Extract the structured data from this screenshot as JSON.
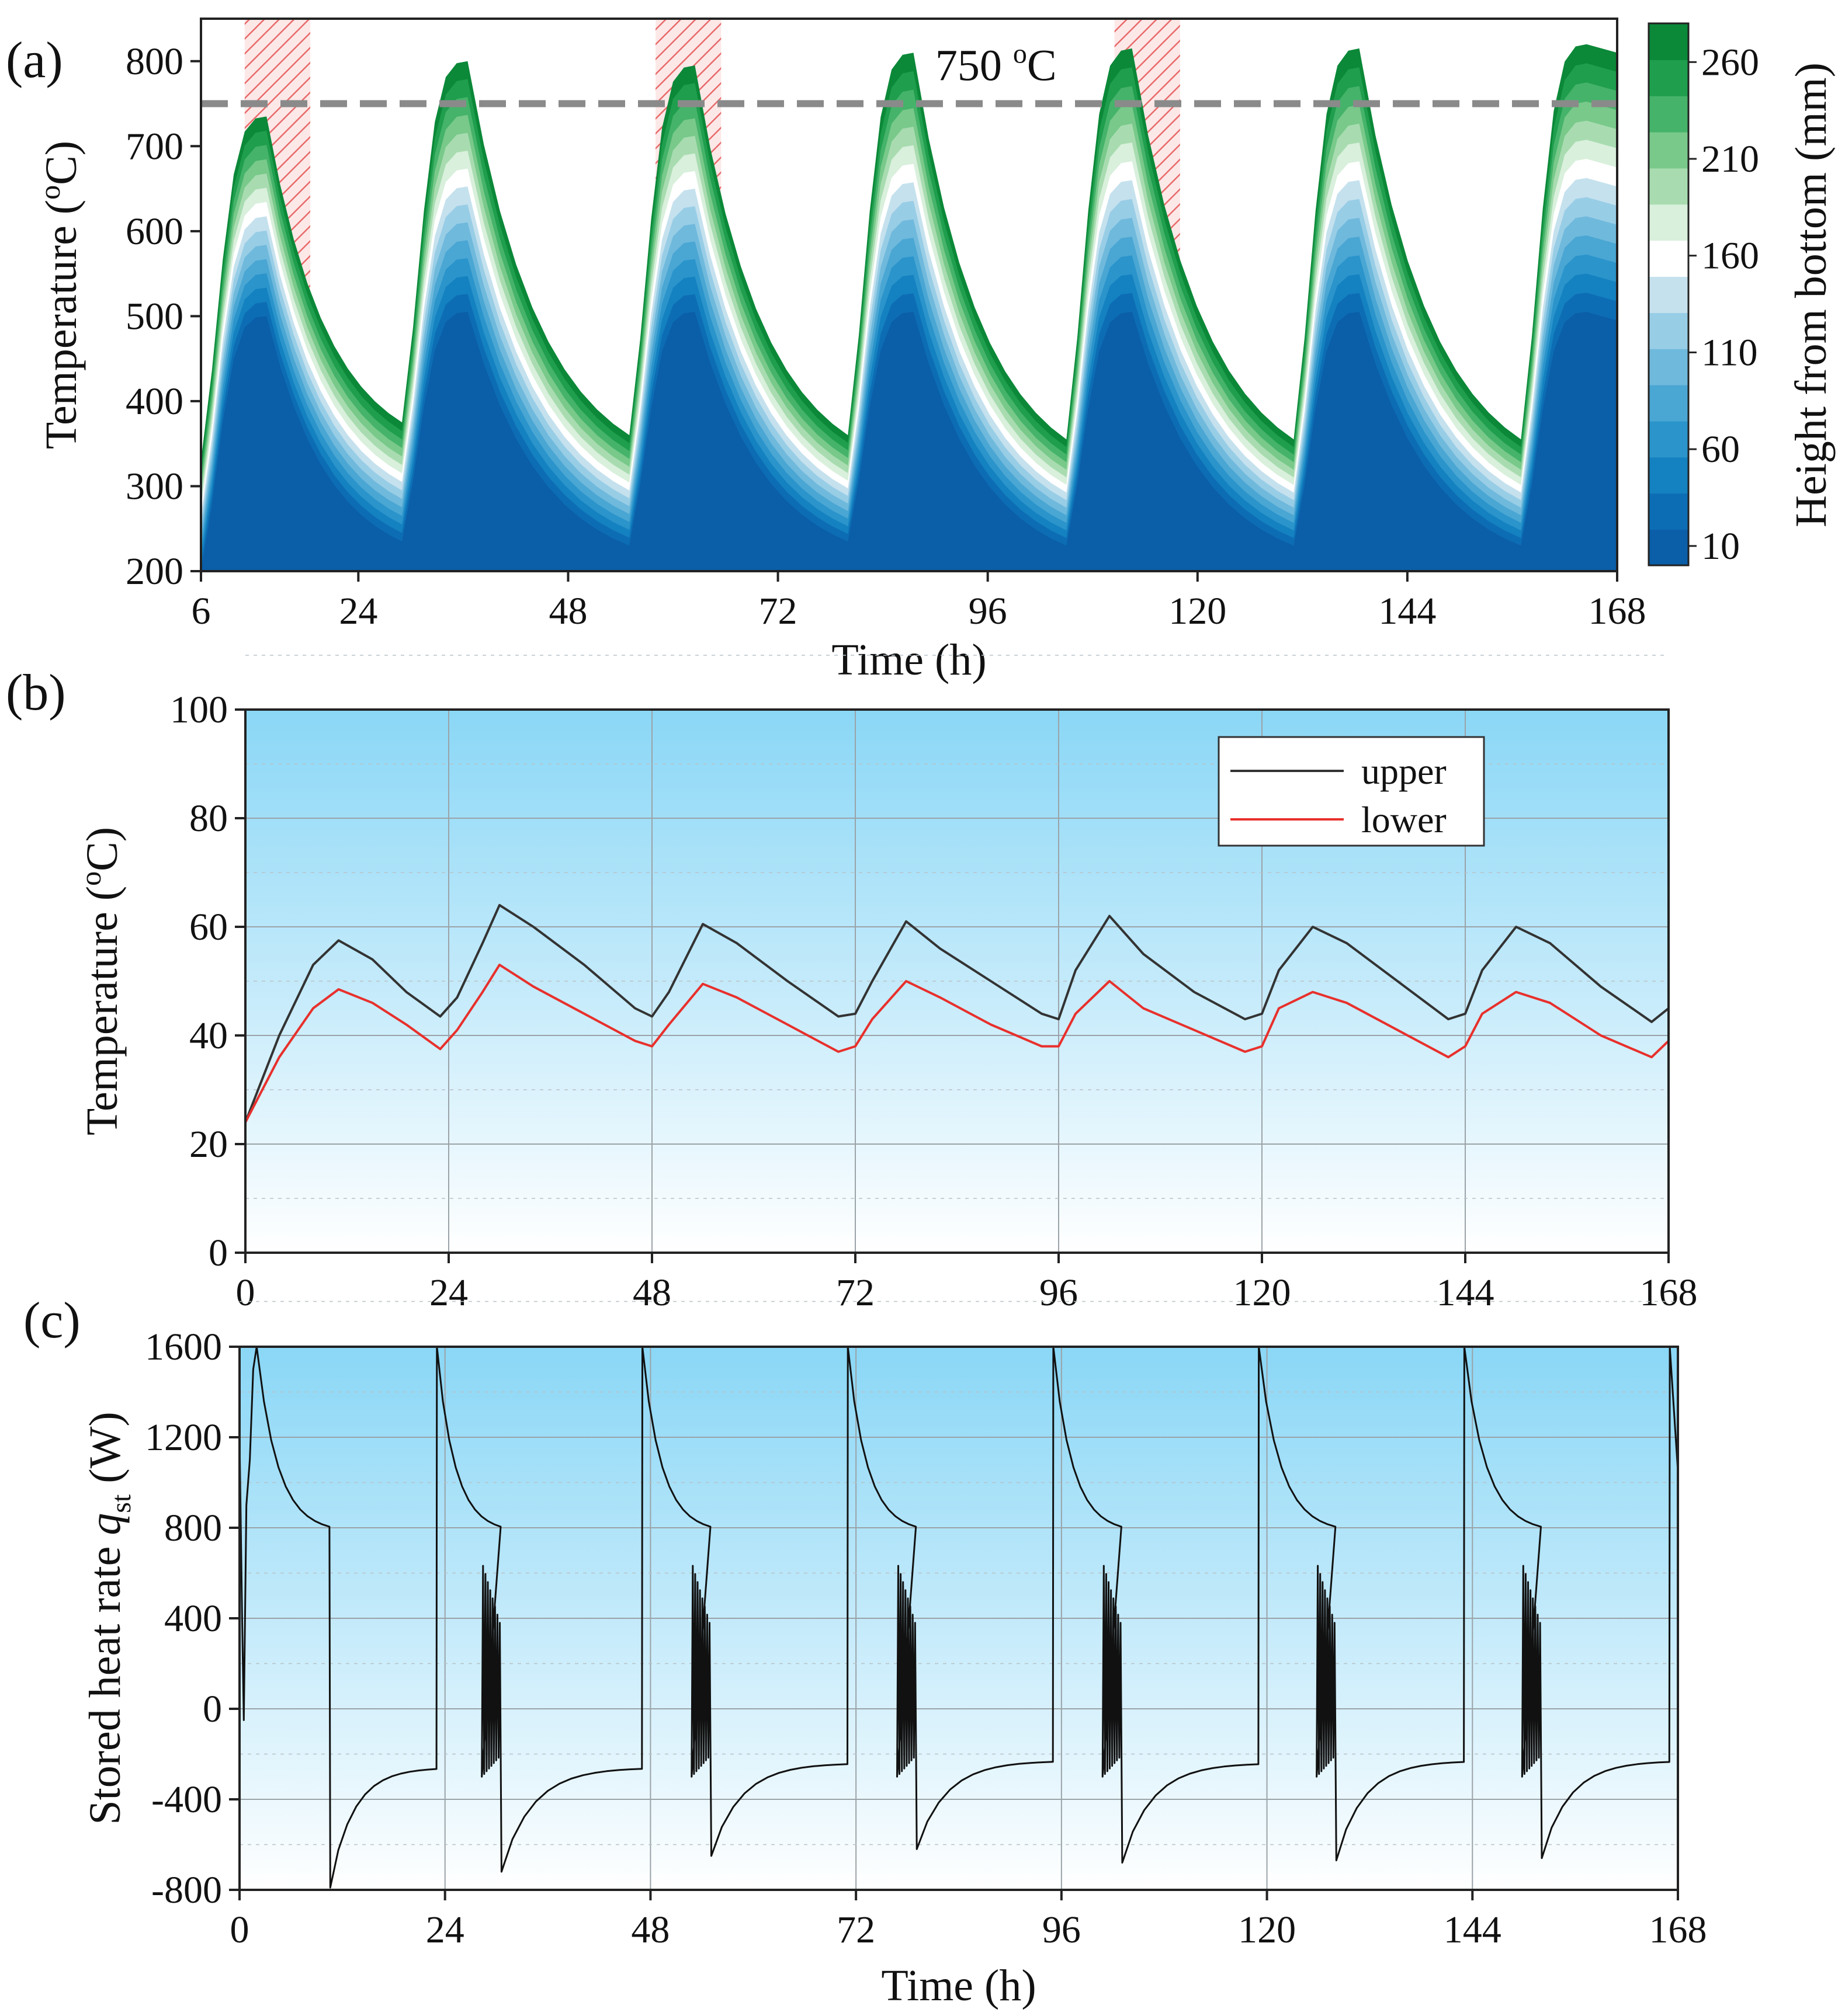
{
  "chart_data": [
    {
      "panel_label": "(a)",
      "type": "area",
      "xlabel": "Time (h)",
      "ylabel_main": "Temperature (",
      "ylabel_sup": "o",
      "ylabel_end": "C)",
      "xlim": [
        6,
        168
      ],
      "ylim": [
        200,
        850
      ],
      "xticks": [
        6,
        24,
        48,
        72,
        96,
        120,
        144,
        168
      ],
      "yticks": [
        200,
        300,
        400,
        500,
        600,
        700,
        800
      ],
      "threshold": {
        "value": 750,
        "label_main": "750 ",
        "label_sup": "o",
        "label_end": "C"
      },
      "shaded_windows": [
        [
          11,
          18.5
        ],
        [
          58,
          65.5
        ],
        [
          110.5,
          118
        ]
      ],
      "cycle_starts": [
        6,
        29,
        55,
        80,
        105,
        131,
        157
      ],
      "peak_offset": 7.5,
      "top_peaks": [
        735,
        800,
        795,
        810,
        815,
        815,
        820
      ],
      "top_troughs": [
        375,
        360,
        360,
        355,
        355,
        355
      ],
      "bottom_peaks": [
        500,
        505,
        505,
        505,
        505,
        505,
        505
      ],
      "bottom_troughs": [
        235,
        230,
        235,
        230,
        230,
        230
      ],
      "start_bottom": 200,
      "colorbar": {
        "title": "Height from bottom (mm)",
        "ticks": [
          10,
          60,
          110,
          160,
          210,
          260
        ],
        "min": 0,
        "max": 280,
        "colors": [
          "#0b5ea8",
          "#0d6db4",
          "#1481c0",
          "#2a94cb",
          "#4aa6d3",
          "#6fb9dc",
          "#98cde6",
          "#c5e1ee",
          "#ffffff",
          "#d9f0dc",
          "#a8dcb0",
          "#78c98a",
          "#45b36a",
          "#1f9e4d",
          "#0b8838"
        ]
      }
    },
    {
      "panel_label": "(b)",
      "type": "line",
      "xlabel": "",
      "ylabel_main": "Temperature (",
      "ylabel_sup": "o",
      "ylabel_end": "C)",
      "xlim": [
        0,
        168
      ],
      "ylim": [
        0,
        100
      ],
      "xticks": [
        0,
        24,
        48,
        72,
        96,
        120,
        144,
        168
      ],
      "yticks": [
        0,
        20,
        40,
        60,
        80,
        100
      ],
      "legend_position": "top-right",
      "series": [
        {
          "name": "upper",
          "color": "#333333",
          "x": [
            0,
            4,
            8,
            11,
            15,
            19,
            23,
            25,
            28,
            30,
            34,
            40,
            46,
            48,
            50,
            54,
            58,
            64,
            70,
            72,
            74,
            78,
            82,
            88,
            94,
            96,
            98,
            102,
            106,
            112,
            118,
            120,
            122,
            126,
            130,
            136,
            142,
            144,
            146,
            150,
            154,
            160,
            166,
            168
          ],
          "y": [
            24,
            40,
            53,
            57.5,
            54,
            48,
            43.5,
            47,
            57,
            64,
            60,
            53,
            45,
            43.5,
            48,
            60.5,
            57,
            50,
            43.5,
            44,
            50,
            61,
            56,
            50,
            44,
            43,
            52,
            62,
            55,
            48,
            43,
            44,
            52,
            60,
            57,
            50,
            43,
            44,
            52,
            60,
            57,
            49,
            42.5,
            45
          ]
        },
        {
          "name": "lower",
          "color": "#e8302c",
          "x": [
            0,
            4,
            8,
            11,
            15,
            19,
            23,
            25,
            28,
            30,
            34,
            40,
            46,
            48,
            50,
            54,
            58,
            64,
            70,
            72,
            74,
            78,
            82,
            88,
            94,
            96,
            98,
            102,
            106,
            112,
            118,
            120,
            122,
            126,
            130,
            136,
            142,
            144,
            146,
            150,
            154,
            160,
            166,
            168
          ],
          "y": [
            24,
            36,
            45,
            48.5,
            46,
            42,
            37.5,
            41,
            48,
            53,
            49,
            44,
            39,
            38,
            42,
            49.5,
            47,
            42,
            37,
            38,
            43,
            50,
            47,
            42,
            38,
            38,
            44,
            50,
            45,
            41,
            37,
            38,
            45,
            48,
            46,
            41,
            36,
            38,
            44,
            48,
            46,
            40,
            36,
            39
          ]
        }
      ]
    },
    {
      "panel_label": "(c)",
      "type": "line",
      "xlabel": "Time (h)",
      "ylabel_main": "Stored heat rate ",
      "ylabel_q": "q",
      "ylabel_sub": "st",
      "ylabel_end": " (W)",
      "xlim": [
        0,
        168
      ],
      "ylim": [
        -800,
        1600
      ],
      "xticks": [
        0,
        24,
        48,
        72,
        96,
        120,
        144,
        168
      ],
      "yticks": [
        -800,
        -400,
        0,
        400,
        800,
        1200,
        1600
      ],
      "charge_starts": [
        2,
        23,
        47,
        71,
        95,
        119,
        143,
        167
      ],
      "drops": [
        10.5,
        30.5,
        55,
        79,
        103,
        128,
        152
      ],
      "trough_values": [
        -790,
        -720,
        -650,
        -620,
        -680,
        -670,
        -660
      ],
      "tail_values": [
        -260,
        -260,
        -240,
        -230,
        -240,
        -230,
        -230
      ]
    }
  ]
}
